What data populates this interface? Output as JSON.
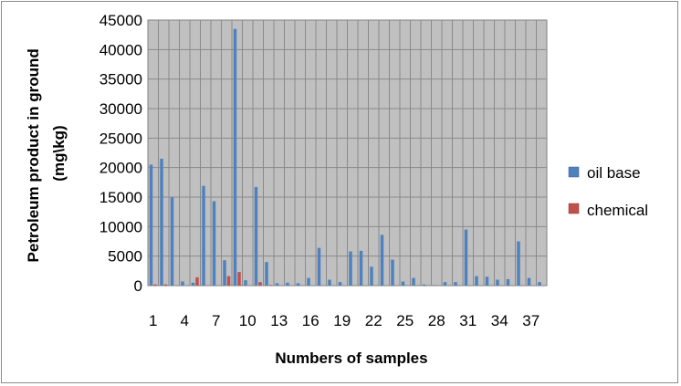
{
  "chart_data": {
    "type": "bar",
    "xlabel": "Numbers of samples",
    "ylabel_lines": [
      "Petroleum product in ground",
      "(mg\\kg)"
    ],
    "ylim": [
      0,
      45000
    ],
    "yticks": [
      0,
      5000,
      10000,
      15000,
      20000,
      25000,
      30000,
      35000,
      40000,
      45000
    ],
    "xtick_labels": [
      "1",
      "4",
      "7",
      "10",
      "13",
      "16",
      "19",
      "22",
      "25",
      "28",
      "31",
      "34",
      "37"
    ],
    "categories": [
      "1",
      "2",
      "3",
      "4",
      "5",
      "6",
      "7",
      "8",
      "9",
      "10",
      "11",
      "12",
      "13",
      "14",
      "15",
      "16",
      "17",
      "18",
      "19",
      "20",
      "21",
      "22",
      "23",
      "24",
      "25",
      "26",
      "27",
      "28",
      "29",
      "30",
      "31",
      "32",
      "33",
      "34",
      "35",
      "36",
      "37",
      "38"
    ],
    "grid": true,
    "legend_position": "right",
    "series": [
      {
        "name": "oil base",
        "color": "#4f81bd",
        "values": [
          20500,
          21500,
          15000,
          700,
          500,
          16900,
          14300,
          4300,
          43500,
          900,
          16700,
          4000,
          400,
          500,
          400,
          1300,
          6400,
          1000,
          600,
          5800,
          5900,
          3200,
          8600,
          4400,
          700,
          1300,
          200,
          100,
          600,
          600,
          9500,
          1600,
          1500,
          1000,
          1100,
          7500,
          1300,
          600
        ]
      },
      {
        "name": "chemical",
        "color": "#c0504d",
        "values": [
          200,
          200,
          0,
          0,
          1400,
          0,
          0,
          1600,
          2300,
          0,
          600,
          100,
          0,
          0,
          0,
          0,
          0,
          0,
          0,
          0,
          0,
          0,
          0,
          0,
          0,
          0,
          0,
          0,
          0,
          0,
          0,
          0,
          0,
          0,
          0,
          0,
          0,
          0
        ]
      }
    ]
  }
}
